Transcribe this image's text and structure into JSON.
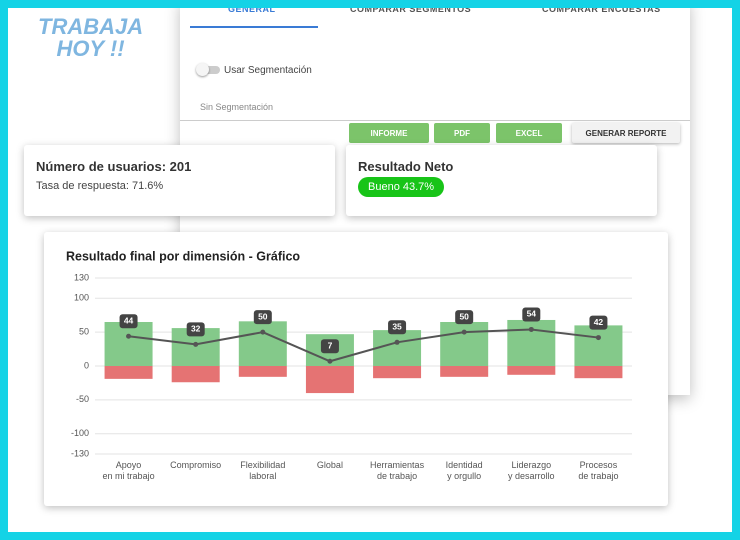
{
  "logo": {
    "line1": "TRABAJA",
    "line2": "HOY !!"
  },
  "tabs": [
    "GENERAL",
    "COMPARAR SEGMENTOS",
    "COMPARAR ENCUESTAS"
  ],
  "toggle_label": "Usar Segmentación",
  "segment_label": "Sin Segmentación",
  "buttons": [
    "INFORME",
    "PDF",
    "EXCEL",
    "GENERAR REPORTE"
  ],
  "users_card": {
    "title": "Número de usuarios: 201",
    "subtitle": "Tasa de respuesta: 71.6%"
  },
  "net_card": {
    "title": "Resultado Neto",
    "badge": "Bueno 43.7%"
  },
  "chart_data": {
    "type": "bar",
    "title": "Resultado final por dimensión - Gráfico",
    "categories": [
      "Apoyo en mi trabajo",
      "Compromiso",
      "Flexibilidad laboral",
      "Global",
      "Herramientas de trabajo",
      "Identidad y orgullo",
      "Liderazgo y desarrollo",
      "Procesos de trabajo"
    ],
    "ylim": [
      -130,
      130
    ],
    "yticks": [
      -130,
      -100,
      -50,
      0,
      50,
      100,
      130
    ],
    "grid": true,
    "series": [
      {
        "color": "#84c98a",
        "values": [
          65,
          56,
          66,
          47,
          53,
          65,
          68,
          60
        ]
      },
      {
        "color": "#e57373",
        "values": [
          -19,
          -24,
          -16,
          -40,
          -18,
          -16,
          -13,
          -18
        ]
      },
      {
        "type": "line",
        "color": "#555555",
        "values": [
          44,
          32,
          50,
          7,
          35,
          50,
          54,
          42
        ]
      }
    ]
  }
}
